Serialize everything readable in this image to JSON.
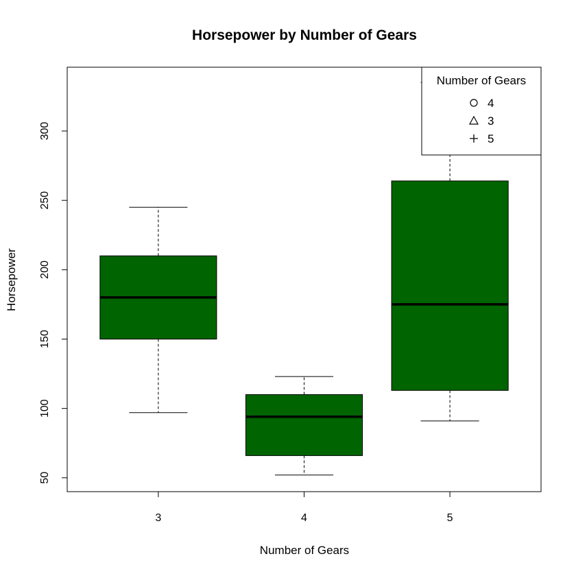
{
  "chart_data": {
    "type": "box",
    "title": "Horsepower by Number of Gears",
    "xlabel": "Number of Gears",
    "ylabel": "Horsepower",
    "categories": [
      "3",
      "4",
      "5"
    ],
    "ylim": [
      40,
      346
    ],
    "yticks": [
      50,
      100,
      150,
      200,
      250,
      300
    ],
    "boxes": [
      {
        "category": "3",
        "whisker_low": 97,
        "q1": 150,
        "median": 180,
        "q3": 210,
        "whisker_high": 245
      },
      {
        "category": "4",
        "whisker_low": 52,
        "q1": 66,
        "median": 94,
        "q3": 110,
        "whisker_high": 123
      },
      {
        "category": "5",
        "whisker_low": 91,
        "q1": 113,
        "median": 175,
        "q3": 264,
        "whisker_high": 335
      }
    ],
    "box_color": "#006400",
    "grid": false,
    "legend": {
      "title": "Number of Gears",
      "position": "top-right",
      "entries": [
        {
          "label": "4",
          "symbol": "circle"
        },
        {
          "label": "3",
          "symbol": "triangle"
        },
        {
          "label": "5",
          "symbol": "plus"
        }
      ]
    }
  }
}
